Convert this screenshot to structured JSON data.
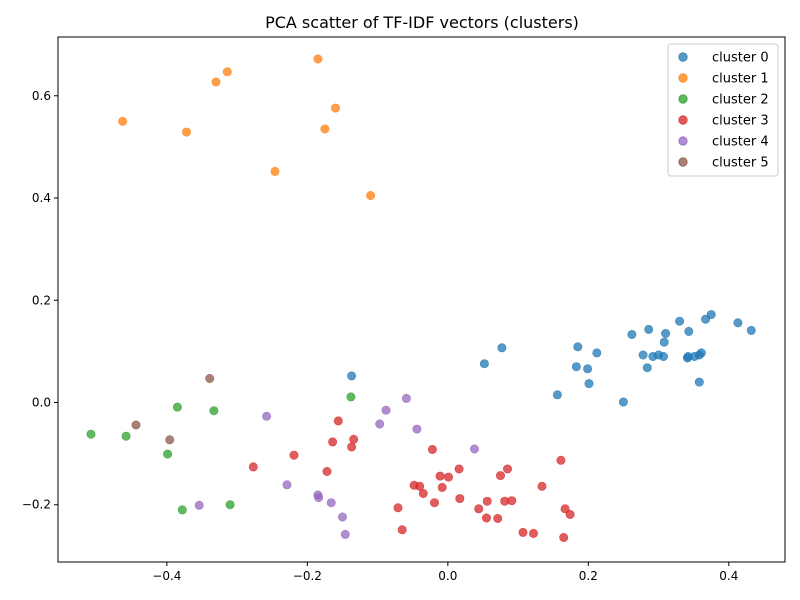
{
  "chart_data": {
    "type": "scatter",
    "title": "PCA scatter of TF-IDF vectors (clusters)",
    "xlabel": "",
    "ylabel": "",
    "xlim": [
      -0.555,
      0.48
    ],
    "ylim": [
      -0.312,
      0.715
    ],
    "xticks": [
      -0.4,
      -0.2,
      0.0,
      0.2,
      0.4
    ],
    "yticks": [
      -0.2,
      0.0,
      0.2,
      0.4,
      0.6
    ],
    "xtick_labels": [
      "−0.4",
      "−0.2",
      "0.0",
      "0.2",
      "0.4"
    ],
    "ytick_labels": [
      "−0.2",
      "0.0",
      "0.2",
      "0.4",
      "0.6"
    ],
    "grid": false,
    "legend_position": "top-right",
    "series": [
      {
        "name": "cluster 0",
        "color": "#1f77b4",
        "points": [
          [
            -0.137,
            0.052
          ],
          [
            0.052,
            0.076
          ],
          [
            0.077,
            0.107
          ],
          [
            0.156,
            0.015
          ],
          [
            0.183,
            0.07
          ],
          [
            0.185,
            0.109
          ],
          [
            0.199,
            0.066
          ],
          [
            0.201,
            0.037
          ],
          [
            0.212,
            0.097
          ],
          [
            0.25,
            0.001
          ],
          [
            0.262,
            0.133
          ],
          [
            0.278,
            0.093
          ],
          [
            0.284,
            0.068
          ],
          [
            0.286,
            0.143
          ],
          [
            0.292,
            0.09
          ],
          [
            0.3,
            0.093
          ],
          [
            0.307,
            0.09
          ],
          [
            0.308,
            0.118
          ],
          [
            0.31,
            0.135
          ],
          [
            0.33,
            0.159
          ],
          [
            0.341,
            0.087
          ],
          [
            0.342,
            0.09
          ],
          [
            0.343,
            0.139
          ],
          [
            0.351,
            0.09
          ],
          [
            0.358,
            0.093
          ],
          [
            0.358,
            0.04
          ],
          [
            0.361,
            0.097
          ],
          [
            0.367,
            0.163
          ],
          [
            0.375,
            0.172
          ],
          [
            0.413,
            0.156
          ],
          [
            0.432,
            0.141
          ]
        ]
      },
      {
        "name": "cluster 1",
        "color": "#ff7f0e",
        "points": [
          [
            -0.463,
            0.55
          ],
          [
            -0.372,
            0.529
          ],
          [
            -0.33,
            0.627
          ],
          [
            -0.314,
            0.647
          ],
          [
            -0.246,
            0.452
          ],
          [
            -0.185,
            0.672
          ],
          [
            -0.175,
            0.535
          ],
          [
            -0.16,
            0.576
          ],
          [
            -0.11,
            0.405
          ]
        ]
      },
      {
        "name": "cluster 2",
        "color": "#2ca02c",
        "points": [
          [
            -0.508,
            -0.062
          ],
          [
            -0.458,
            -0.066
          ],
          [
            -0.399,
            -0.101
          ],
          [
            -0.385,
            -0.009
          ],
          [
            -0.378,
            -0.21
          ],
          [
            -0.333,
            -0.016
          ],
          [
            -0.31,
            -0.2
          ],
          [
            -0.138,
            0.011
          ]
        ]
      },
      {
        "name": "cluster 3",
        "color": "#d62728",
        "points": [
          [
            -0.277,
            -0.126
          ],
          [
            -0.219,
            -0.103
          ],
          [
            -0.172,
            -0.135
          ],
          [
            -0.164,
            -0.077
          ],
          [
            -0.156,
            -0.036
          ],
          [
            -0.137,
            -0.087
          ],
          [
            -0.134,
            -0.072
          ],
          [
            -0.071,
            -0.206
          ],
          [
            -0.065,
            -0.249
          ],
          [
            -0.048,
            -0.162
          ],
          [
            -0.04,
            -0.164
          ],
          [
            -0.035,
            -0.178
          ],
          [
            -0.022,
            -0.092
          ],
          [
            -0.019,
            -0.196
          ],
          [
            -0.011,
            -0.144
          ],
          [
            -0.008,
            -0.166
          ],
          [
            0.001,
            -0.146
          ],
          [
            0.016,
            -0.13
          ],
          [
            0.017,
            -0.188
          ],
          [
            0.044,
            -0.208
          ],
          [
            0.055,
            -0.226
          ],
          [
            0.056,
            -0.193
          ],
          [
            0.071,
            -0.227
          ],
          [
            0.075,
            -0.143
          ],
          [
            0.081,
            -0.193
          ],
          [
            0.085,
            -0.13
          ],
          [
            0.091,
            -0.192
          ],
          [
            0.107,
            -0.254
          ],
          [
            0.122,
            -0.256
          ],
          [
            0.134,
            -0.164
          ],
          [
            0.161,
            -0.113
          ],
          [
            0.165,
            -0.264
          ],
          [
            0.167,
            -0.208
          ],
          [
            0.174,
            -0.219
          ]
        ]
      },
      {
        "name": "cluster 4",
        "color": "#9467bd",
        "points": [
          [
            -0.354,
            -0.201
          ],
          [
            -0.258,
            -0.027
          ],
          [
            -0.229,
            -0.161
          ],
          [
            -0.185,
            -0.181
          ],
          [
            -0.184,
            -0.186
          ],
          [
            -0.166,
            -0.196
          ],
          [
            -0.15,
            -0.224
          ],
          [
            -0.146,
            -0.258
          ],
          [
            -0.097,
            -0.042
          ],
          [
            -0.088,
            -0.015
          ],
          [
            -0.059,
            0.008
          ],
          [
            -0.044,
            -0.052
          ],
          [
            0.038,
            -0.091
          ]
        ]
      },
      {
        "name": "cluster 5",
        "color": "#8c564b",
        "points": [
          [
            -0.444,
            -0.044
          ],
          [
            -0.396,
            -0.073
          ],
          [
            -0.339,
            0.047
          ]
        ]
      }
    ]
  }
}
